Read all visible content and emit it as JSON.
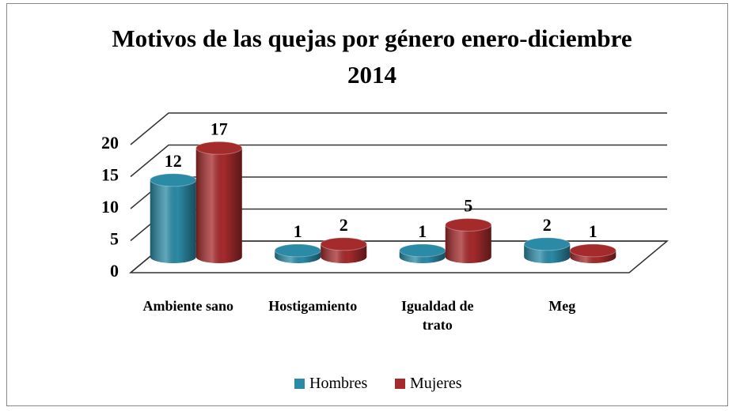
{
  "chart_data": {
    "type": "bar3d",
    "title": "Motivos de las quejas por género enero-diciembre 2014",
    "categories": [
      "Ambiente sano",
      "Hostigamiento",
      "Igualdad de trato",
      "Meg"
    ],
    "series": [
      {
        "name": "Hombres",
        "color": "#2b8aa6",
        "values": [
          12,
          1,
          1,
          2
        ]
      },
      {
        "name": "Mujeres",
        "color": "#a52a2c",
        "values": [
          17,
          2,
          5,
          1
        ]
      }
    ],
    "ylim": [
      0,
      20
    ],
    "yticks": [
      0,
      5,
      10,
      15,
      20
    ],
    "grid": true
  }
}
